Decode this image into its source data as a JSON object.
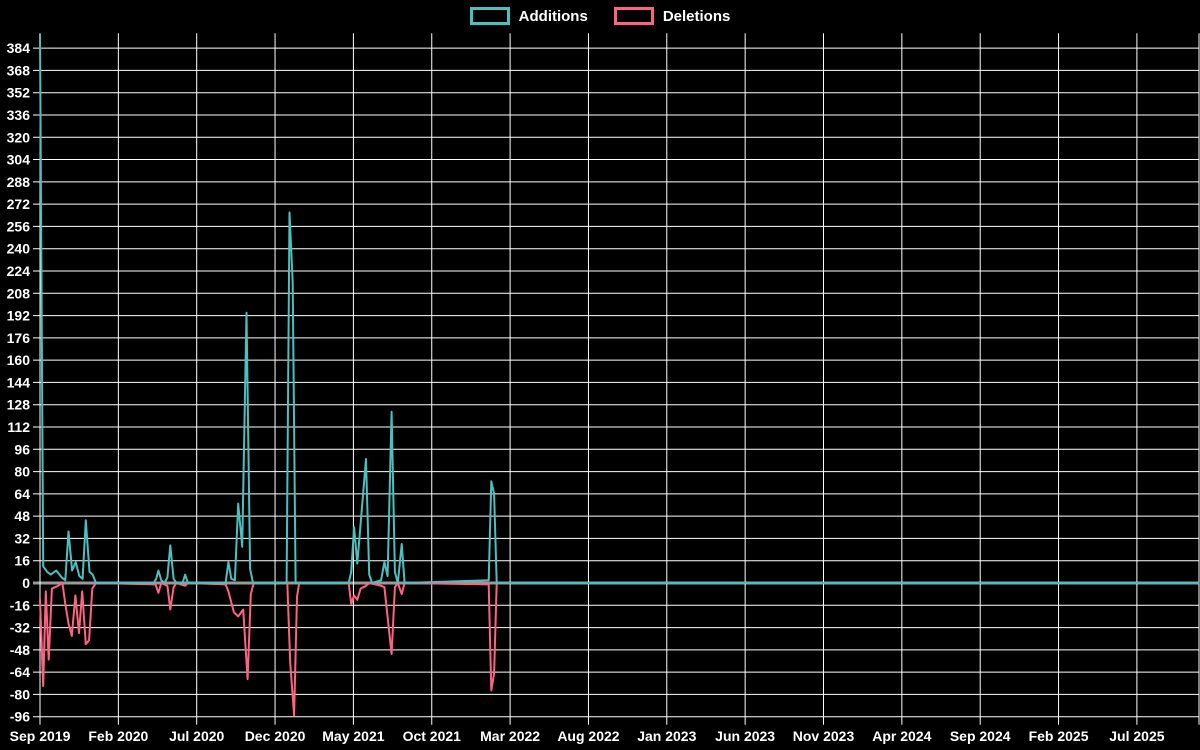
{
  "chart": {
    "background_color": "#000000",
    "text_color": "#ffffff",
    "grid_color": "#ffffff",
    "zero_line_color": "#9a9a9a",
    "additions_color": "#4bc0c0",
    "deletions_color": "#ff6384"
  },
  "chart_data": {
    "type": "line",
    "title": "",
    "legend_position": "top",
    "grid": true,
    "x_unit": "weeks since Sep 2019",
    "xlim": [
      0,
      321
    ],
    "ylim": [
      -96,
      394
    ],
    "y_ticks": [
      384,
      368,
      352,
      336,
      320,
      304,
      288,
      272,
      256,
      240,
      224,
      208,
      192,
      176,
      160,
      144,
      128,
      112,
      96,
      80,
      64,
      48,
      32,
      16,
      0,
      -16,
      -32,
      -48,
      -64,
      -80,
      -96
    ],
    "x_tick_labels": [
      "Sep 2019",
      "Feb 2020",
      "Jul 2020",
      "Dec 2020",
      "May 2021",
      "Oct 2021",
      "Mar 2022",
      "Aug 2022",
      "Jan 2023",
      "Jun 2023",
      "Nov 2023",
      "Apr 2024",
      "Sep 2024",
      "Feb 2025",
      "Jul 2025"
    ],
    "series": [
      {
        "name": "Additions",
        "color": "#4bc0c0",
        "points": [
          [
            0,
            394
          ],
          [
            0.9,
            12
          ],
          [
            2,
            8
          ],
          [
            3,
            6
          ],
          [
            4.5,
            9
          ],
          [
            6,
            4
          ],
          [
            7,
            2
          ],
          [
            7.9,
            37
          ],
          [
            8.9,
            9
          ],
          [
            9.9,
            15
          ],
          [
            10.9,
            5
          ],
          [
            11.8,
            3
          ],
          [
            12.7,
            45
          ],
          [
            13.7,
            8
          ],
          [
            14.6,
            6
          ],
          [
            15.5,
            0
          ],
          [
            31.5,
            0
          ],
          [
            32.2,
            3
          ],
          [
            32.8,
            9
          ],
          [
            33.6,
            2
          ],
          [
            34.5,
            0
          ],
          [
            35.3,
            4
          ],
          [
            36.1,
            27
          ],
          [
            37,
            3
          ],
          [
            37.8,
            0
          ],
          [
            39.5,
            0
          ],
          [
            40.2,
            6
          ],
          [
            41,
            0
          ],
          [
            51.4,
            0
          ],
          [
            52.2,
            15
          ],
          [
            53,
            3
          ],
          [
            54,
            2
          ],
          [
            54.9,
            57
          ],
          [
            56,
            26
          ],
          [
            57.2,
            194
          ],
          [
            58.2,
            10
          ],
          [
            59,
            0
          ],
          [
            68.3,
            0
          ],
          [
            69.1,
            266
          ],
          [
            70,
            216
          ],
          [
            70.8,
            0
          ],
          [
            85.5,
            0
          ],
          [
            86.2,
            8
          ],
          [
            87,
            40
          ],
          [
            87.9,
            14
          ],
          [
            90.3,
            89
          ],
          [
            91.2,
            6
          ],
          [
            92,
            0
          ],
          [
            94.5,
            2
          ],
          [
            95.4,
            15
          ],
          [
            96.3,
            5
          ],
          [
            97.4,
            123
          ],
          [
            98.3,
            8
          ],
          [
            99.1,
            0
          ],
          [
            100.2,
            28
          ],
          [
            101,
            0
          ],
          [
            124.3,
            2
          ],
          [
            125,
            73
          ],
          [
            125.8,
            64
          ],
          [
            126.5,
            0
          ],
          [
            321,
            0
          ]
        ]
      },
      {
        "name": "Deletions",
        "color": "#ff6384",
        "points": [
          [
            0,
            -12
          ],
          [
            0.9,
            -74
          ],
          [
            1.6,
            -6
          ],
          [
            2.4,
            -55
          ],
          [
            3.3,
            -4
          ],
          [
            5,
            -2
          ],
          [
            6.2,
            0
          ],
          [
            7,
            -15
          ],
          [
            7.9,
            -29
          ],
          [
            8.8,
            -38
          ],
          [
            9.8,
            -9
          ],
          [
            10.8,
            -36
          ],
          [
            11.7,
            -6
          ],
          [
            12.7,
            -44
          ],
          [
            13.6,
            -41
          ],
          [
            14.5,
            -4
          ],
          [
            15.5,
            0
          ],
          [
            32,
            -1
          ],
          [
            32.8,
            -7
          ],
          [
            33.6,
            0
          ],
          [
            35.3,
            -2
          ],
          [
            36.1,
            -19
          ],
          [
            37,
            -3
          ],
          [
            37.8,
            0
          ],
          [
            40.2,
            -2
          ],
          [
            41,
            0
          ],
          [
            51.4,
            -1
          ],
          [
            52.2,
            -6
          ],
          [
            53.7,
            -21
          ],
          [
            54.9,
            -24
          ],
          [
            56.3,
            -19
          ],
          [
            57.5,
            -69
          ],
          [
            58.4,
            -8
          ],
          [
            59.2,
            0
          ],
          [
            68.5,
            0
          ],
          [
            69.3,
            -57
          ],
          [
            70.4,
            -95
          ],
          [
            71.2,
            -10
          ],
          [
            71.8,
            0
          ],
          [
            85.5,
            0
          ],
          [
            86.2,
            -15
          ],
          [
            87,
            -9
          ],
          [
            87.9,
            -12
          ],
          [
            88.8,
            -4
          ],
          [
            90.3,
            -2
          ],
          [
            91.2,
            0
          ],
          [
            94.5,
            -2
          ],
          [
            95.4,
            -3
          ],
          [
            97.4,
            -51
          ],
          [
            98.3,
            -3
          ],
          [
            99.1,
            0
          ],
          [
            100.2,
            -8
          ],
          [
            101,
            0
          ],
          [
            124.3,
            -1
          ],
          [
            125,
            -77
          ],
          [
            125.8,
            -65
          ],
          [
            126.5,
            0
          ],
          [
            321,
            0
          ]
        ]
      }
    ]
  }
}
